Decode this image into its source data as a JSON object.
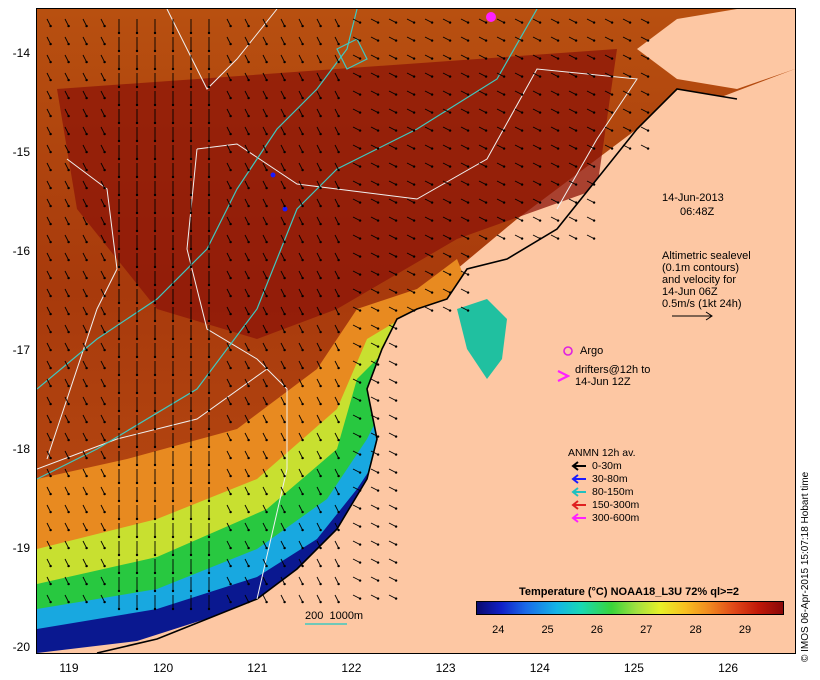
{
  "map": {
    "y_ticks": [
      {
        "label": "-14",
        "value": -14
      },
      {
        "label": "-15",
        "value": -15
      },
      {
        "label": "-16",
        "value": -16
      },
      {
        "label": "-17",
        "value": -17
      },
      {
        "label": "-18",
        "value": -18
      },
      {
        "label": "-19",
        "value": -19
      },
      {
        "label": "-20",
        "value": -20
      }
    ],
    "x_ticks": [
      {
        "label": "119",
        "value": 119
      },
      {
        "label": "120",
        "value": 120
      },
      {
        "label": "121",
        "value": 121
      },
      {
        "label": "122",
        "value": 122
      },
      {
        "label": "123",
        "value": 123
      },
      {
        "label": "124",
        "value": 124
      },
      {
        "label": "125",
        "value": 125
      },
      {
        "label": "126",
        "value": 126
      }
    ],
    "lon_range": [
      118.65,
      126.7
    ],
    "lat_range": [
      -20.05,
      -13.55
    ],
    "land_color": "#fdc7a3"
  },
  "annotations": {
    "date": "14-Jun-2013",
    "time": "06:48Z",
    "altimetry": [
      "Altimetric sealevel",
      "(0.1m contours)",
      "and velocity for",
      "14-Jun 06Z",
      "0.5m/s (1kt 24h)"
    ],
    "argo": "Argo",
    "drifters_line1": "drifters@12h to",
    "drifters_line2": "14-Jun 12Z",
    "isobath": "200  1000m"
  },
  "legend": {
    "title": "ANMN 12h av.",
    "items": [
      {
        "label": "0-30m",
        "color": "#000000"
      },
      {
        "label": "30-80m",
        "color": "#1a1aff"
      },
      {
        "label": "80-150m",
        "color": "#20c0c0"
      },
      {
        "label": "150-300m",
        "color": "#e02020"
      },
      {
        "label": "300-600m",
        "color": "#ff20ff"
      }
    ]
  },
  "colorbar": {
    "title": "Temperature (°C) NOAA18_L3U 72% ql>=2",
    "ticks": [
      {
        "label": "24",
        "value": 24
      },
      {
        "label": "25",
        "value": 25
      },
      {
        "label": "26",
        "value": 26
      },
      {
        "label": "27",
        "value": 27
      },
      {
        "label": "28",
        "value": 28
      },
      {
        "label": "29",
        "value": 29
      }
    ],
    "range": [
      23.55,
      29.75
    ]
  },
  "credit": "© IMOS 06-Apr-2015 15:07:18 Hobart time"
}
